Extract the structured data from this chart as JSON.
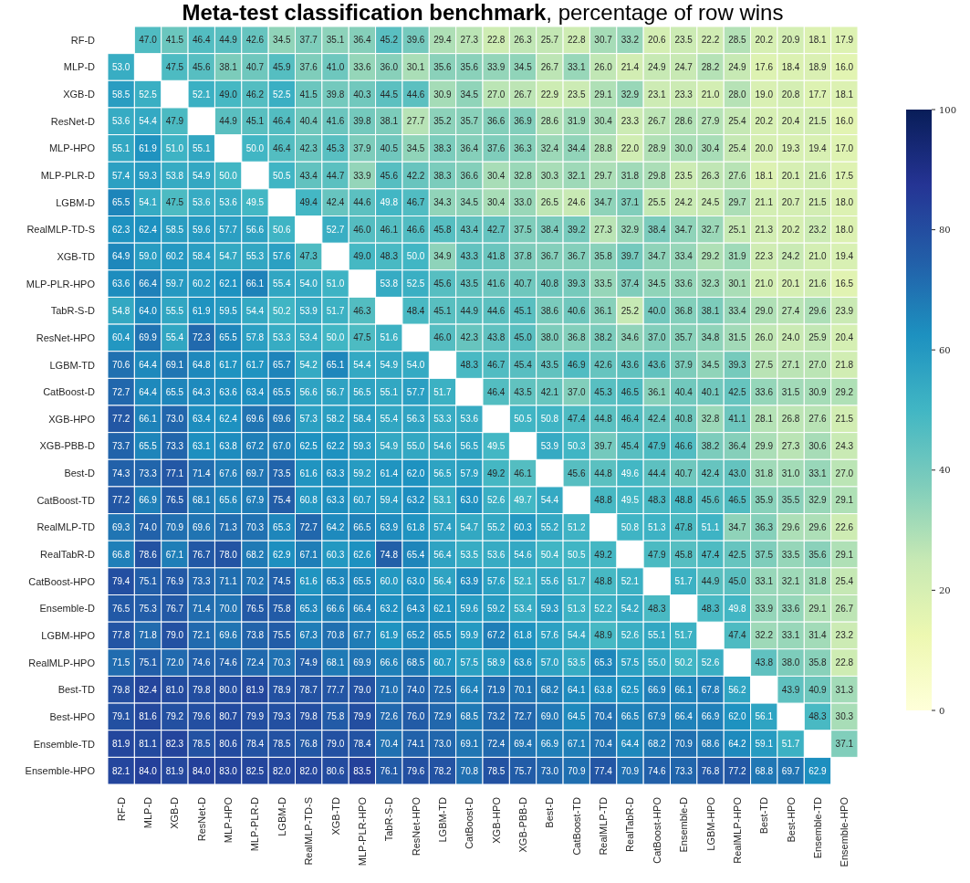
{
  "chart_data": {
    "type": "heatmap",
    "title": "Meta-test classification benchmark",
    "subtitle": ", percentage of row wins",
    "categories": [
      "RF-D",
      "MLP-D",
      "XGB-D",
      "ResNet-D",
      "MLP-HPO",
      "MLP-PLR-D",
      "LGBM-D",
      "RealMLP-TD-S",
      "XGB-TD",
      "MLP-PLR-HPO",
      "TabR-S-D",
      "ResNet-HPO",
      "LGBM-TD",
      "CatBoost-D",
      "XGB-HPO",
      "XGB-PBB-D",
      "Best-D",
      "CatBoost-TD",
      "RealMLP-TD",
      "RealTabR-D",
      "CatBoost-HPO",
      "Ensemble-D",
      "LGBM-HPO",
      "RealMLP-HPO",
      "Best-TD",
      "Best-HPO",
      "Ensemble-TD",
      "Ensemble-HPO"
    ],
    "y_categories": [
      "RF-D",
      "MLP-D",
      "XGB-D",
      "ResNet-D",
      "MLP-HPO",
      "MLP-PLR-D",
      "LGBM-D",
      "RealMLP-TD-S",
      "XGB-TD",
      "MLP-PLR-HPO",
      "TabR-S-D",
      "ResNet-HPO",
      "LGBM-TD",
      "CatBoost-D",
      "XGB-HPO",
      "XGB-PBB-D",
      "Best-D",
      "CatBoost-TD",
      "RealMLP-TD",
      "RealTabR-D",
      "CatBoost-HPO",
      "Ensemble-D",
      "LGBM-HPO",
      "RealMLP-HPO",
      "Best-TD",
      "Best-HPO",
      "Ensemble-TD",
      "Ensemble-HPO"
    ],
    "cells": [
      [
        null,
        47.0,
        41.5,
        46.4,
        44.9,
        42.6,
        34.5,
        37.7,
        35.1,
        36.4,
        45.2,
        39.6,
        29.4,
        27.3,
        22.8,
        26.3,
        25.7,
        22.8,
        30.7,
        33.2,
        20.6,
        23.5,
        22.2,
        28.5,
        20.2,
        20.9,
        18.1,
        17.9
      ],
      [
        53.0,
        null,
        47.5,
        45.6,
        38.1,
        40.7,
        45.9,
        37.6,
        41.0,
        33.6,
        36.0,
        30.1,
        35.6,
        35.6,
        33.9,
        34.5,
        26.7,
        33.1,
        26.0,
        21.4,
        24.9,
        24.7,
        28.2,
        24.9,
        17.6,
        18.4,
        18.9,
        16.0
      ],
      [
        58.5,
        52.5,
        null,
        52.1,
        49.0,
        46.2,
        52.5,
        41.5,
        39.8,
        40.3,
        44.5,
        44.6,
        30.9,
        34.5,
        27.0,
        26.7,
        22.9,
        23.5,
        29.1,
        32.9,
        23.1,
        23.3,
        21.0,
        28.0,
        19.0,
        20.8,
        17.7,
        18.1
      ],
      [
        53.6,
        54.4,
        47.9,
        null,
        44.9,
        45.1,
        46.4,
        40.4,
        41.6,
        39.8,
        38.1,
        27.7,
        35.2,
        35.7,
        36.6,
        36.9,
        28.6,
        31.9,
        30.4,
        23.3,
        26.7,
        28.6,
        27.9,
        25.4,
        20.2,
        20.4,
        21.5,
        16.0
      ],
      [
        55.1,
        61.9,
        51.0,
        55.1,
        null,
        50.0,
        46.4,
        42.3,
        45.3,
        37.9,
        40.5,
        34.5,
        38.3,
        36.4,
        37.6,
        36.3,
        32.4,
        34.4,
        28.8,
        22.0,
        28.9,
        30.0,
        30.4,
        25.4,
        20.0,
        19.3,
        19.4,
        17.0
      ],
      [
        57.4,
        59.3,
        53.8,
        54.9,
        50.0,
        null,
        50.5,
        43.4,
        44.7,
        33.9,
        45.6,
        42.2,
        38.3,
        36.6,
        30.4,
        32.8,
        30.3,
        32.1,
        29.7,
        31.8,
        29.8,
        23.5,
        26.3,
        27.6,
        18.1,
        20.1,
        21.6,
        17.5
      ],
      [
        65.5,
        54.1,
        47.5,
        53.6,
        53.6,
        49.5,
        null,
        49.4,
        42.4,
        44.6,
        49.8,
        46.7,
        34.3,
        34.5,
        30.4,
        33.0,
        26.5,
        24.6,
        34.7,
        37.1,
        25.5,
        24.2,
        24.5,
        29.7,
        21.1,
        20.7,
        21.5,
        18.0
      ],
      [
        62.3,
        62.4,
        58.5,
        59.6,
        57.7,
        56.6,
        50.6,
        null,
        52.7,
        46.0,
        46.1,
        46.6,
        45.8,
        43.4,
        42.7,
        37.5,
        38.4,
        39.2,
        27.3,
        32.9,
        38.4,
        34.7,
        32.7,
        25.1,
        21.3,
        20.2,
        23.2,
        18.0
      ],
      [
        64.9,
        59.0,
        60.2,
        58.4,
        54.7,
        55.3,
        57.6,
        47.3,
        null,
        49.0,
        48.3,
        50.0,
        34.9,
        43.3,
        41.8,
        37.8,
        36.7,
        36.7,
        35.8,
        39.7,
        34.7,
        33.4,
        29.2,
        31.9,
        22.3,
        24.2,
        21.0,
        19.4
      ],
      [
        63.6,
        66.4,
        59.7,
        60.2,
        62.1,
        66.1,
        55.4,
        54.0,
        51.0,
        null,
        53.8,
        52.5,
        45.6,
        43.5,
        41.6,
        40.7,
        40.8,
        39.3,
        33.5,
        37.4,
        34.5,
        33.6,
        32.3,
        30.1,
        21.0,
        20.1,
        21.6,
        16.5
      ],
      [
        54.8,
        64.0,
        55.5,
        61.9,
        59.5,
        54.4,
        50.2,
        53.9,
        51.7,
        46.3,
        null,
        48.4,
        45.1,
        44.9,
        44.6,
        45.1,
        38.6,
        40.6,
        36.1,
        25.2,
        40.0,
        36.8,
        38.1,
        33.4,
        29.0,
        27.4,
        29.6,
        23.9
      ],
      [
        60.4,
        69.9,
        55.4,
        72.3,
        65.5,
        57.8,
        53.3,
        53.4,
        50.0,
        47.5,
        51.6,
        null,
        46.0,
        42.3,
        43.8,
        45.0,
        38.0,
        36.8,
        38.2,
        34.6,
        37.0,
        35.7,
        34.8,
        31.5,
        26.0,
        24.0,
        25.9,
        20.4
      ],
      [
        70.6,
        64.4,
        69.1,
        64.8,
        61.7,
        61.7,
        65.7,
        54.2,
        65.1,
        54.4,
        54.9,
        54.0,
        null,
        48.3,
        46.7,
        45.4,
        43.5,
        46.9,
        42.6,
        43.6,
        43.6,
        37.9,
        34.5,
        39.3,
        27.5,
        27.1,
        27.0,
        21.8
      ],
      [
        72.7,
        64.4,
        65.5,
        64.3,
        63.6,
        63.4,
        65.5,
        56.6,
        56.7,
        56.5,
        55.1,
        57.7,
        51.7,
        null,
        46.4,
        43.5,
        42.1,
        37.0,
        45.3,
        46.5,
        36.1,
        40.4,
        40.1,
        42.5,
        33.6,
        31.5,
        30.9,
        29.2
      ],
      [
        77.2,
        66.1,
        73.0,
        63.4,
        62.4,
        69.6,
        69.6,
        57.3,
        58.2,
        58.4,
        55.4,
        56.3,
        53.3,
        53.6,
        null,
        50.5,
        50.8,
        47.4,
        44.8,
        46.4,
        42.4,
        40.8,
        32.8,
        41.1,
        28.1,
        26.8,
        27.6,
        21.5
      ],
      [
        73.7,
        65.5,
        73.3,
        63.1,
        63.8,
        67.2,
        67.0,
        62.5,
        62.2,
        59.3,
        54.9,
        55.0,
        54.6,
        56.5,
        49.5,
        null,
        53.9,
        50.3,
        39.7,
        45.4,
        47.9,
        46.6,
        38.2,
        36.4,
        29.9,
        27.3,
        30.6,
        24.3
      ],
      [
        74.3,
        73.3,
        77.1,
        71.4,
        67.6,
        69.7,
        73.5,
        61.6,
        63.3,
        59.2,
        61.4,
        62.0,
        56.5,
        57.9,
        49.2,
        46.1,
        null,
        45.6,
        44.8,
        49.6,
        44.4,
        40.7,
        42.4,
        43.0,
        31.8,
        31.0,
        33.1,
        27.0
      ],
      [
        77.2,
        66.9,
        76.5,
        68.1,
        65.6,
        67.9,
        75.4,
        60.8,
        63.3,
        60.7,
        59.4,
        63.2,
        53.1,
        63.0,
        52.6,
        49.7,
        54.4,
        null,
        48.8,
        49.5,
        48.3,
        48.8,
        45.6,
        46.5,
        35.9,
        35.5,
        32.9,
        29.1
      ],
      [
        69.3,
        74.0,
        70.9,
        69.6,
        71.3,
        70.3,
        65.3,
        72.7,
        64.2,
        66.5,
        63.9,
        61.8,
        57.4,
        54.7,
        55.2,
        60.3,
        55.2,
        51.2,
        null,
        50.8,
        51.3,
        47.8,
        51.1,
        34.7,
        36.3,
        29.6,
        29.6,
        22.6
      ],
      [
        66.8,
        78.6,
        67.1,
        76.7,
        78.0,
        68.2,
        62.9,
        67.1,
        60.3,
        62.6,
        74.8,
        65.4,
        56.4,
        53.5,
        53.6,
        54.6,
        50.4,
        50.5,
        49.2,
        null,
        47.9,
        45.8,
        47.4,
        42.5,
        37.5,
        33.5,
        35.6,
        29.1
      ],
      [
        79.4,
        75.1,
        76.9,
        73.3,
        71.1,
        70.2,
        74.5,
        61.6,
        65.3,
        65.5,
        60.0,
        63.0,
        56.4,
        63.9,
        57.6,
        52.1,
        55.6,
        51.7,
        48.8,
        52.1,
        null,
        51.7,
        44.9,
        45.0,
        33.1,
        32.1,
        31.8,
        25.4
      ],
      [
        76.5,
        75.3,
        76.7,
        71.4,
        70.0,
        76.5,
        75.8,
        65.3,
        66.6,
        66.4,
        63.2,
        64.3,
        62.1,
        59.6,
        59.2,
        53.4,
        59.3,
        51.3,
        52.2,
        54.2,
        48.3,
        null,
        48.3,
        49.8,
        33.9,
        33.6,
        29.1,
        26.7
      ],
      [
        77.8,
        71.8,
        79.0,
        72.1,
        69.6,
        73.8,
        75.5,
        67.3,
        70.8,
        67.7,
        61.9,
        65.2,
        65.5,
        59.9,
        67.2,
        61.8,
        57.6,
        54.4,
        48.9,
        52.6,
        55.1,
        51.7,
        null,
        47.4,
        32.2,
        33.1,
        31.4,
        23.2
      ],
      [
        71.5,
        75.1,
        72.0,
        74.6,
        74.6,
        72.4,
        70.3,
        74.9,
        68.1,
        69.9,
        66.6,
        68.5,
        60.7,
        57.5,
        58.9,
        63.6,
        57.0,
        53.5,
        65.3,
        57.5,
        55.0,
        50.2,
        52.6,
        null,
        43.8,
        38.0,
        35.8,
        22.8
      ],
      [
        79.8,
        82.4,
        81.0,
        79.8,
        80.0,
        81.9,
        78.9,
        78.7,
        77.7,
        79.0,
        71.0,
        74.0,
        72.5,
        66.4,
        71.9,
        70.1,
        68.2,
        64.1,
        63.8,
        62.5,
        66.9,
        66.1,
        67.8,
        56.2,
        null,
        43.9,
        40.9,
        31.3
      ],
      [
        79.1,
        81.6,
        79.2,
        79.6,
        80.7,
        79.9,
        79.3,
        79.8,
        75.8,
        79.9,
        72.6,
        76.0,
        72.9,
        68.5,
        73.2,
        72.7,
        69.0,
        64.5,
        70.4,
        66.5,
        67.9,
        66.4,
        66.9,
        62.0,
        56.1,
        null,
        48.3,
        30.3
      ],
      [
        81.9,
        81.1,
        82.3,
        78.5,
        80.6,
        78.4,
        78.5,
        76.8,
        79.0,
        78.4,
        70.4,
        74.1,
        73.0,
        69.1,
        72.4,
        69.4,
        66.9,
        67.1,
        70.4,
        64.4,
        68.2,
        70.9,
        68.6,
        64.2,
        59.1,
        51.7,
        null,
        37.1
      ],
      [
        82.1,
        84.0,
        81.9,
        84.0,
        83.0,
        82.5,
        82.0,
        82.0,
        80.6,
        83.5,
        76.1,
        79.6,
        78.2,
        70.8,
        78.5,
        75.7,
        73.0,
        70.9,
        77.4,
        70.9,
        74.6,
        73.3,
        76.8,
        77.2,
        68.8,
        69.7,
        62.9,
        null
      ]
    ],
    "cell_labels": [
      [
        null,
        "47.0",
        "41.5",
        "46.4",
        "44.9",
        "42.6",
        "34.5",
        "37.7",
        "35.1",
        "36.4",
        "45.2",
        "39.6",
        "29.4",
        "27.3",
        "22.8",
        "26.3",
        "25.7",
        "22.8",
        "30.7",
        "33.2",
        "20.6",
        "23.5",
        "22.2",
        "28.5",
        "20.2",
        "20.9",
        "18.1",
        "17.9"
      ],
      [
        "53.0",
        null,
        "47.5",
        "45.6",
        "38.1",
        "40.7",
        "45.9",
        "37.6",
        "41.0",
        "33.6",
        "36.0",
        "30.1",
        "35.6",
        "35.6",
        "33.9",
        "34.5",
        "26.7",
        "33.1",
        "26.0",
        "21.4",
        "24.9",
        "24.7",
        "28.2",
        "24.9",
        "17.6",
        "18.4",
        "18.9",
        "16.0"
      ],
      [
        "58.5",
        "52.5",
        null,
        "52.1",
        "49.0",
        "46.2",
        "52.5",
        "41.5",
        "39.8",
        "40.3",
        "44.5",
        "44.6",
        "30.9",
        "34.5",
        "27.0",
        "26.7",
        "22.9",
        "23.5",
        "29.1",
        "32.9",
        "23.1",
        "23.3",
        "21.0",
        "28.0",
        "19.0",
        "20.8",
        "17.7",
        "18.1"
      ],
      [
        "53.6",
        "54.4",
        "47.9",
        null,
        "44.9",
        "45.1",
        "46.4",
        "40.4",
        "41.6",
        "39.8",
        "38.1",
        "27.7",
        "35.2",
        "35.7",
        "36.6",
        "36.9",
        "28.6",
        "31.9",
        "30.4",
        "23.3",
        "26.7",
        "28.6",
        "27.9",
        "25.4",
        "20.2",
        "20.4",
        "21.5",
        "16.0"
      ],
      [
        "55.1",
        "61.9",
        "51.0",
        "55.1",
        null,
        "50.0",
        "46.4",
        "42.3",
        "45.3",
        "37.9",
        "40.5",
        "34.5",
        "38.3",
        "36.4",
        "37.6",
        "36.3",
        "32.4",
        "34.4",
        "28.8",
        "22.0",
        "28.9",
        "30.0",
        "30.4",
        "25.4",
        "20.0",
        "19.3",
        "19.4",
        "17.0"
      ],
      [
        "57.4",
        "59.3",
        "53.8",
        "54.9",
        "50.0",
        null,
        "50.5",
        "43.4",
        "44.7",
        "33.9",
        "45.6",
        "42.2",
        "38.3",
        "36.6",
        "30.4",
        "32.8",
        "30.3",
        "32.1",
        "29.7",
        "31.8",
        "29.8",
        "23.5",
        "26.3",
        "27.6",
        "18.1",
        "20.1",
        "21.6",
        "17.5"
      ],
      [
        "65.5",
        "54.1",
        "47.5",
        "53.6",
        "53.6",
        "49.5",
        null,
        "49.4",
        "42.4",
        "44.6",
        "49.8",
        "46.7",
        "34.3",
        "34.5",
        "30.4",
        "33.0",
        "26.5",
        "24.6",
        "34.7",
        "37.1",
        "25.5",
        "24.2",
        "24.5",
        "29.7",
        "21.1",
        "20.7",
        "21.5",
        "18.0"
      ],
      [
        "62.3",
        "62.4",
        "58.5",
        "59.6",
        "57.7",
        "56.6",
        "50.6",
        null,
        "52.7",
        "46.0",
        "46.1",
        "46.6",
        "45.8",
        "43.4",
        "42.7",
        "37.5",
        "38.4",
        "39.2",
        "27.3",
        "32.9",
        "38.4",
        "34.7",
        "32.7",
        "25.1",
        "21.3",
        "20.2",
        "23.2",
        "18.0"
      ],
      [
        "64.9",
        "59.0",
        "60.2",
        "58.4",
        "54.7",
        "55.3",
        "57.6",
        "47.3",
        null,
        "49.0",
        "48.3",
        "50.0",
        "34.9",
        "43.3",
        "41.8",
        "37.8",
        "36.7",
        "36.7",
        "35.8",
        "39.7",
        "34.7",
        "33.4",
        "29.2",
        "31.9",
        "22.3",
        "24.2",
        "21.0",
        "19.4"
      ],
      [
        "63.6",
        "66.4",
        "59.7",
        "60.2",
        "62.1",
        "66.1",
        "55.4",
        "54.0",
        "51.0",
        null,
        "53.8",
        "52.5",
        "45.6",
        "43.5",
        "41.6",
        "40.7",
        "40.8",
        "39.3",
        "33.5",
        "37.4",
        "34.5",
        "33.6",
        "32.3",
        "30.1",
        "21.0",
        "20.1",
        "21.6",
        "16.5"
      ],
      [
        "54.8",
        "64.0",
        "55.5",
        "61.9",
        "59.5",
        "54.4",
        "50.2",
        "53.9",
        "51.7",
        "46.3",
        null,
        "48.4",
        "45.1",
        "44.9",
        "44.6",
        "45.1",
        "38.6",
        "40.6",
        "36.1",
        "25.2",
        "40.0",
        "36.8",
        "38.1",
        "33.4",
        "29.0",
        "27.4",
        "29.6",
        "23.9"
      ],
      [
        "60.4",
        "69.9",
        "55.4",
        "72.3",
        "65.5",
        "57.8",
        "53.3",
        "53.4",
        "50.0",
        "47.5",
        "51.6",
        null,
        "46.0",
        "42.3",
        "43.8",
        "45.0",
        "38.0",
        "36.8",
        "38.2",
        "34.6",
        "37.0",
        "35.7",
        "34.8",
        "31.5",
        "26.0",
        "24.0",
        "25.9",
        "20.4"
      ],
      [
        "70.6",
        "64.4",
        "69.1",
        "64.8",
        "61.7",
        "61.7",
        "65.7",
        "54.2",
        "65.1",
        "54.4",
        "54.9",
        "54.0",
        null,
        "48.3",
        "46.7",
        "45.4",
        "43.5",
        "46.9",
        "42.6",
        "43.6",
        "43.6",
        "37.9",
        "34.5",
        "39.3",
        "27.5",
        "27.1",
        "27.0",
        "21.8"
      ],
      [
        "72.7",
        "64.4",
        "65.5",
        "64.3",
        "63.6",
        "63.4",
        "65.5",
        "56.6",
        "56.7",
        "56.5",
        "55.1",
        "57.7",
        "51.7",
        null,
        "46.4",
        "43.5",
        "42.1",
        "37.0",
        "45.3",
        "46.5",
        "36.1",
        "40.4",
        "40.1",
        "42.5",
        "33.6",
        "31.5",
        "30.9",
        "29.2"
      ],
      [
        "77.2",
        "66.1",
        "73.0",
        "63.4",
        "62.4",
        "69.6",
        "69.6",
        "57.3",
        "58.2",
        "58.4",
        "55.4",
        "56.3",
        "53.3",
        "53.6",
        null,
        "50.5",
        "50.8",
        "47.4",
        "44.8",
        "46.4",
        "42.4",
        "40.8",
        "32.8",
        "41.1",
        "28.1",
        "26.8",
        "27.6",
        "21.5"
      ],
      [
        "73.7",
        "65.5",
        "73.3",
        "63.1",
        "63.8",
        "67.2",
        "67.0",
        "62.5",
        "62.2",
        "59.3",
        "54.9",
        "55.0",
        "54.6",
        "56.5",
        "49.5",
        null,
        "53.9",
        "50.3",
        "39.7",
        "45.4",
        "47.9",
        "46.6",
        "38.2",
        "36.4",
        "29.9",
        "27.3",
        "30.6",
        "24.3"
      ],
      [
        "74.3",
        "73.3",
        "77.1",
        "71.4",
        "67.6",
        "69.7",
        "73.5",
        "61.6",
        "63.3",
        "59.2",
        "61.4",
        "62.0",
        "56.5",
        "57.9",
        "49.2",
        "46.1",
        null,
        "45.6",
        "44.8",
        "49.6",
        "44.4",
        "40.7",
        "42.4",
        "43.0",
        "31.8",
        "31.0",
        "33.1",
        "27.0"
      ],
      [
        "77.2",
        "66.9",
        "76.5",
        "68.1",
        "65.6",
        "67.9",
        "75.4",
        "60.8",
        "63.3",
        "60.7",
        "59.4",
        "63.2",
        "53.1",
        "63.0",
        "52.6",
        "49.7",
        "54.4",
        null,
        "48.8",
        "49.5",
        "48.3",
        "48.8",
        "45.6",
        "46.5",
        "35.9",
        "35.5",
        "32.9",
        "29.1"
      ],
      [
        "69.3",
        "74.0",
        "70.9",
        "69.6",
        "71.3",
        "70.3",
        "65.3",
        "72.7",
        "64.2",
        "66.5",
        "63.9",
        "61.8",
        "57.4",
        "54.7",
        "55.2",
        "60.3",
        "55.2",
        "51.2",
        null,
        "50.8",
        "51.3",
        "47.8",
        "51.1",
        "34.7",
        "36.3",
        "29.6",
        "29.6",
        "22.6"
      ],
      [
        "66.8",
        "78.6",
        "67.1",
        "76.7",
        "78.0",
        "68.2",
        "62.9",
        "67.1",
        "60.3",
        "62.6",
        "74.8",
        "65.4",
        "56.4",
        "53.5",
        "53.6",
        "54.6",
        "50.4",
        "50.5",
        "49.2",
        null,
        "47.9",
        "45.8",
        "47.4",
        "42.5",
        "37.5",
        "33.5",
        "35.6",
        "29.1"
      ],
      [
        "79.4",
        "75.1",
        "76.9",
        "73.3",
        "71.1",
        "70.2",
        "74.5",
        "61.6",
        "65.3",
        "65.5",
        "60.0",
        "63.0",
        "56.4",
        "63.9",
        "57.6",
        "52.1",
        "55.6",
        "51.7",
        "48.8",
        "52.1",
        null,
        "51.7",
        "44.9",
        "45.0",
        "33.1",
        "32.1",
        "31.8",
        "25.4"
      ],
      [
        "76.5",
        "75.3",
        "76.7",
        "71.4",
        "70.0",
        "76.5",
        "75.8",
        "65.3",
        "66.6",
        "66.4",
        "63.2",
        "64.3",
        "62.1",
        "59.6",
        "59.2",
        "53.4",
        "59.3",
        "51.3",
        "52.2",
        "54.2",
        "48.3",
        null,
        "48.3",
        "49.8",
        "33.9",
        "33.6",
        "29.1",
        "26.7"
      ],
      [
        "77.8",
        "71.8",
        "79.0",
        "72.1",
        "69.6",
        "73.8",
        "75.5",
        "67.3",
        "70.8",
        "67.7",
        "61.9",
        "65.2",
        "65.5",
        "59.9",
        "67.2",
        "61.8",
        "57.6",
        "54.4",
        "48.9",
        "52.6",
        "55.1",
        "51.7",
        null,
        "47.4",
        "32.2",
        "33.1",
        "31.4",
        "23.2"
      ],
      [
        "71.5",
        "75.1",
        "72.0",
        "74.6",
        "74.6",
        "72.4",
        "70.3",
        "74.9",
        "68.1",
        "69.9",
        "66.6",
        "68.5",
        "60.7",
        "57.5",
        "58.9",
        "63.6",
        "57.0",
        "53.5",
        "65.3",
        "57.5",
        "55.0",
        "50.2",
        "52.6",
        null,
        "43.8",
        "38.0",
        "35.8",
        "22.8"
      ],
      [
        "79.8",
        "82.4",
        "81.0",
        "79.8",
        "80.0",
        "81.9",
        "78.9",
        "78.7",
        "77.7",
        "79.0",
        "71.0",
        "74.0",
        "72.5",
        "66.4",
        "71.9",
        "70.1",
        "68.2",
        "64.1",
        "63.8",
        "62.5",
        "66.9",
        "66.1",
        "67.8",
        "56.2",
        null,
        "43.9",
        "40.9",
        "31.3"
      ],
      [
        "79.1",
        "81.6",
        "79.2",
        "79.6",
        "80.7",
        "79.9",
        "79.3",
        "79.8",
        "75.8",
        "79.9",
        "72.6",
        "76.0",
        "72.9",
        "68.5",
        "73.2",
        "72.7",
        "69.0",
        "64.5",
        "70.4",
        "66.5",
        "67.9",
        "66.4",
        "66.9",
        "62.0",
        "56.1",
        null,
        "48.3",
        "30.3"
      ],
      [
        "81.9",
        "81.1",
        "82.3",
        "78.5",
        "80.6",
        "78.4",
        "78.5",
        "76.8",
        "79.0",
        "78.4",
        "70.4",
        "74.1",
        "73.0",
        "69.1",
        "72.4",
        "69.4",
        "66.9",
        "67.1",
        "70.4",
        "64.4",
        "68.2",
        "70.9",
        "68.6",
        "64.2",
        "59.1",
        "51.7",
        null,
        "37.1"
      ],
      [
        "82.1",
        "84.0",
        "81.9",
        "84.0",
        "83.0",
        "82.5",
        "82.0",
        "82.0",
        "80.6",
        "83.5",
        "76.1",
        "79.6",
        "78.2",
        "70.8",
        "78.5",
        "75.7",
        "73.0",
        "70.9",
        "77.4",
        "70.9",
        "74.6",
        "73.3",
        "76.8",
        "77.2",
        "68.8",
        "69.7",
        "62.9",
        null
      ]
    ],
    "data_labels": true,
    "clim": [
      0,
      100
    ],
    "cticks": [
      0,
      20,
      40,
      60,
      80,
      100
    ]
  }
}
